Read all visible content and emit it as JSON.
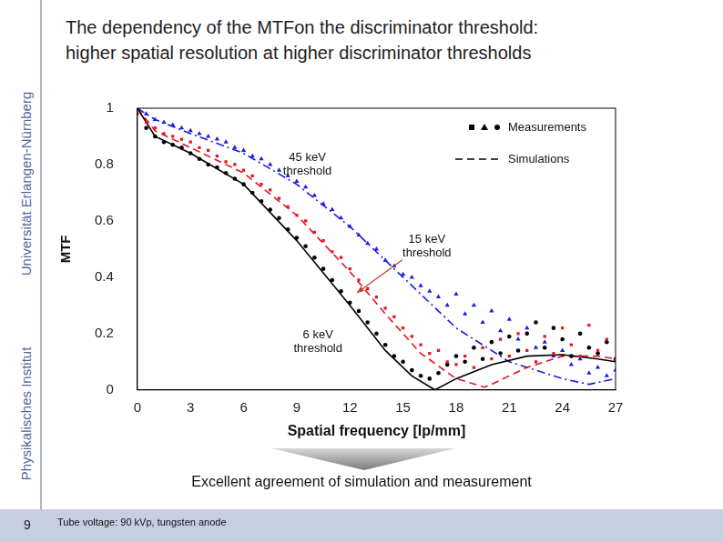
{
  "slide": {
    "title": [
      "The dependency of the MTFon the discriminator threshold:",
      "higher spatial resolution at higher discriminator thresholds"
    ],
    "institute": [
      "Physikalisches Institut",
      "Universität Erlangen-Nürnberg"
    ],
    "page": 9,
    "conclusion": "Excellent agreement of simulation and measurement",
    "footnote": "Tube voltage: 90 kVp, tungsten anode"
  },
  "chart_data": {
    "type": "scatter",
    "x_label": "Spatial frequency [lp/mm]",
    "y_label": "MTF",
    "xlim": [
      0,
      27
    ],
    "xticks": [
      0,
      3,
      6,
      9,
      12,
      15,
      18,
      21,
      24,
      27
    ],
    "ylim": [
      0,
      1
    ],
    "yticks": [
      0,
      0.2,
      0.4,
      0.6,
      0.8,
      1
    ],
    "grid": false,
    "legend": "top-right",
    "legend_entries": [
      {
        "label": "Measurements",
        "type": "scatter"
      },
      {
        "label": "Simulations",
        "type": "line",
        "line_style": "dashed"
      }
    ],
    "x": [
      0,
      0.5,
      1,
      1.5,
      2,
      2.5,
      3,
      3.5,
      4,
      4.5,
      5,
      5.5,
      6,
      6.5,
      7,
      7.5,
      8,
      8.5,
      9,
      9.5,
      10,
      10.5,
      11,
      11.5,
      12,
      12.5,
      13,
      13.5,
      14,
      14.5,
      15,
      15.5,
      16,
      16.5,
      17,
      17.5,
      18,
      18.5,
      19,
      19.5,
      20,
      20.5,
      21,
      21.5,
      22,
      22.5,
      23,
      23.5,
      24,
      24.5,
      25,
      25.5,
      26,
      26.5,
      27
    ],
    "series": [
      {
        "name": "15 keV threshold",
        "type": "scatter",
        "marker": "square",
        "color": "#e8141e",
        "label": {
          "x": 16.35,
          "y": 0.51
        },
        "arrow_to": {
          "x": 12.4,
          "y": 0.345
        },
        "values": [
          0.98,
          0.95,
          0.93,
          0.91,
          0.9,
          0.89,
          0.88,
          0.86,
          0.85,
          0.83,
          0.81,
          0.8,
          0.78,
          0.76,
          0.73,
          0.71,
          0.68,
          0.65,
          0.62,
          0.6,
          0.56,
          0.53,
          0.49,
          0.47,
          0.43,
          0.39,
          0.36,
          0.33,
          0.29,
          0.26,
          0.22,
          0.19,
          0.16,
          0.13,
          0.14,
          0.1,
          0.09,
          0.12,
          0.08,
          0.15,
          0.11,
          0.18,
          0.12,
          0.2,
          0.14,
          0.1,
          0.19,
          0.13,
          0.22,
          0.16,
          0.12,
          0.23,
          0.14,
          0.18,
          0.11
        ]
      },
      {
        "name": "45 keV threshold",
        "type": "scatter",
        "marker": "triangle",
        "color": "#1a1ae6",
        "label": {
          "x": 9.6,
          "y": 0.8
        },
        "values": [
          1.0,
          0.98,
          0.96,
          0.95,
          0.94,
          0.93,
          0.92,
          0.91,
          0.9,
          0.89,
          0.88,
          0.86,
          0.85,
          0.83,
          0.82,
          0.8,
          0.78,
          0.76,
          0.74,
          0.72,
          0.69,
          0.66,
          0.64,
          0.61,
          0.58,
          0.55,
          0.52,
          0.5,
          0.46,
          0.44,
          0.41,
          0.4,
          0.37,
          0.35,
          0.33,
          0.3,
          0.34,
          0.27,
          0.3,
          0.24,
          0.28,
          0.21,
          0.25,
          0.18,
          0.22,
          0.15,
          0.17,
          0.12,
          0.14,
          0.09,
          0.11,
          0.06,
          0.08,
          0.05,
          0.07
        ]
      },
      {
        "name": "6 keV threshold",
        "type": "scatter",
        "marker": "circle",
        "color": "#000000",
        "label": {
          "x": 10.2,
          "y": 0.17
        },
        "values": [
          1.0,
          0.93,
          0.9,
          0.88,
          0.87,
          0.86,
          0.84,
          0.82,
          0.8,
          0.79,
          0.77,
          0.75,
          0.73,
          0.7,
          0.67,
          0.64,
          0.61,
          0.57,
          0.54,
          0.51,
          0.47,
          0.43,
          0.39,
          0.35,
          0.31,
          0.28,
          0.24,
          0.2,
          0.16,
          0.12,
          0.1,
          0.07,
          0.05,
          0.04,
          0.06,
          0.09,
          0.12,
          0.1,
          0.15,
          0.11,
          0.17,
          0.13,
          0.19,
          0.14,
          0.2,
          0.24,
          0.15,
          0.22,
          0.18,
          0.12,
          0.2,
          0.15,
          0.13,
          0.17,
          0.11
        ]
      },
      {
        "type": "line",
        "line_style": "solid",
        "color": "#000000",
        "x": [
          0,
          1,
          3,
          6,
          9,
          12,
          14,
          15.5,
          16.8,
          18,
          20,
          22,
          24,
          26,
          27
        ],
        "values": [
          1.0,
          0.9,
          0.84,
          0.73,
          0.53,
          0.3,
          0.14,
          0.05,
          0.0,
          0.04,
          0.09,
          0.12,
          0.125,
          0.11,
          0.1
        ]
      },
      {
        "type": "line",
        "line_style": "dashed",
        "color": "#e8141e",
        "x": [
          0,
          1,
          3,
          6,
          9,
          12,
          14,
          16,
          18,
          19.6,
          20,
          22,
          24,
          26,
          27
        ],
        "values": [
          1.0,
          0.92,
          0.86,
          0.77,
          0.62,
          0.42,
          0.27,
          0.13,
          0.04,
          0.01,
          0.02,
          0.08,
          0.12,
          0.12,
          0.11
        ]
      },
      {
        "type": "line",
        "line_style": "dashdot",
        "color": "#1a1ae6",
        "x": [
          0,
          1,
          3,
          6,
          9,
          12,
          15,
          18,
          21,
          24,
          25.5,
          27
        ],
        "values": [
          1.0,
          0.96,
          0.91,
          0.84,
          0.73,
          0.58,
          0.4,
          0.22,
          0.1,
          0.04,
          0.02,
          0.04
        ]
      }
    ]
  }
}
